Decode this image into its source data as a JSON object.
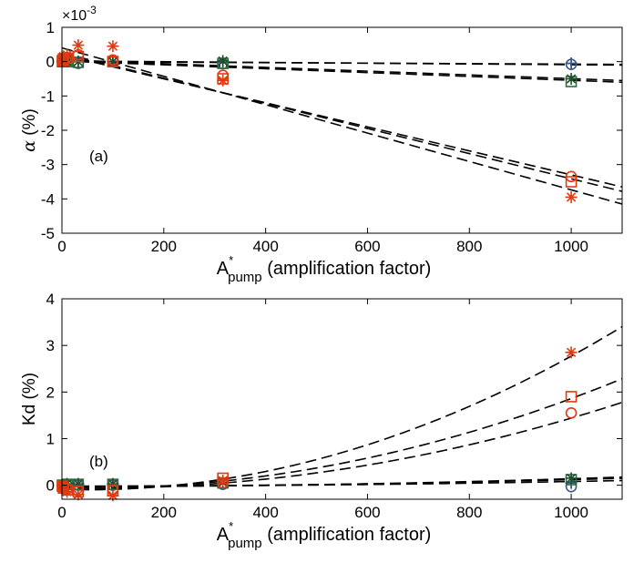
{
  "chart_data": [
    {
      "type": "scatter",
      "panel_label": "(a)",
      "xlabel_base": "A",
      "xlabel_sup": "*",
      "xlabel_sub": "pump",
      "xlabel_rest": " (amplification factor)",
      "ylabel_greek": "α",
      "ylabel_rest": " (%)",
      "y_multiplier_base": "×10",
      "y_multiplier_exp": "-3",
      "xlim": [
        0,
        1100
      ],
      "ylim": [
        -5,
        1
      ],
      "xticks": [
        0,
        200,
        400,
        600,
        800,
        1000
      ],
      "yticks": [
        -5,
        -4,
        -3,
        -2,
        -1,
        0,
        1
      ],
      "marker_series": [
        {
          "marker": "circle",
          "color": "#3a5a8c",
          "x": [
            1,
            3,
            10,
            32,
            100,
            316,
            1000
          ],
          "y": [
            0,
            0.03,
            0.02,
            -0.05,
            0,
            -0.06,
            -0.08
          ]
        },
        {
          "marker": "plus",
          "color": "#3a5a8c",
          "x": [
            1,
            3,
            10,
            32,
            100,
            316,
            1000
          ],
          "y": [
            0,
            0.02,
            0.02,
            0,
            0,
            -0.03,
            -0.05
          ]
        },
        {
          "marker": "square",
          "color": "#2e6b3c",
          "x": [
            1,
            3,
            10,
            32,
            100,
            316,
            1000
          ],
          "y": [
            0,
            0.01,
            0,
            -0.02,
            0,
            -0.05,
            -0.58
          ]
        },
        {
          "marker": "star",
          "color": "#1e4f2a",
          "x": [
            1,
            3,
            10,
            32,
            100,
            316,
            1000
          ],
          "y": [
            0,
            0.02,
            0.01,
            0,
            0,
            0.02,
            -0.5
          ]
        },
        {
          "marker": "circle",
          "color": "#e03a10",
          "x": [
            1,
            3,
            10,
            32,
            100,
            316,
            1000
          ],
          "y": [
            0.05,
            0.1,
            0.12,
            0.2,
            0.05,
            -0.4,
            -3.35
          ]
        },
        {
          "marker": "square",
          "color": "#e03a10",
          "x": [
            1,
            3,
            10,
            32,
            100,
            316,
            1000
          ],
          "y": [
            0.03,
            0.08,
            0.1,
            0.15,
            0,
            -0.5,
            -3.5
          ]
        },
        {
          "marker": "star",
          "color": "#e03a10",
          "x": [
            1,
            3,
            10,
            32,
            100,
            316,
            1000
          ],
          "y": [
            0.05,
            0.15,
            0.2,
            0.48,
            0.45,
            -0.55,
            -3.95
          ]
        }
      ],
      "fit_lines": [
        {
          "x": [
            0,
            1100
          ],
          "y": [
            0.02,
            -0.1
          ]
        },
        {
          "x": [
            0,
            1100
          ],
          "y": [
            0,
            -0.08
          ]
        },
        {
          "x": [
            0,
            1100
          ],
          "y": [
            0.05,
            -0.55
          ]
        },
        {
          "x": [
            0,
            1100
          ],
          "y": [
            0.02,
            -0.6
          ]
        },
        {
          "x": [
            0,
            1100
          ],
          "y": [
            0.2,
            -3.65
          ]
        },
        {
          "x": [
            0,
            1100
          ],
          "y": [
            0.25,
            -3.78
          ]
        },
        {
          "x": [
            0,
            1100
          ],
          "y": [
            0.4,
            -4.15
          ]
        }
      ]
    },
    {
      "type": "scatter",
      "panel_label": "(b)",
      "xlabel_base": "A",
      "xlabel_sup": "*",
      "xlabel_sub": "pump",
      "xlabel_rest": " (amplification factor)",
      "ylabel": "Kd (%)",
      "xlim": [
        0,
        1100
      ],
      "ylim": [
        -0.3,
        4
      ],
      "xticks": [
        0,
        200,
        400,
        600,
        800,
        1000
      ],
      "yticks": [
        0,
        1,
        2,
        3,
        4
      ],
      "marker_series": [
        {
          "marker": "circle",
          "color": "#3a5a8c",
          "x": [
            1,
            3,
            10,
            32,
            100,
            316,
            1000
          ],
          "y": [
            0,
            0,
            0,
            0,
            0,
            0.02,
            -0.03
          ]
        },
        {
          "marker": "plus",
          "color": "#3a5a8c",
          "x": [
            1,
            3,
            10,
            32,
            100,
            316,
            1000
          ],
          "y": [
            0,
            0,
            0,
            0,
            0,
            0.03,
            0.05
          ]
        },
        {
          "marker": "square",
          "color": "#2e6b3c",
          "x": [
            1,
            3,
            10,
            32,
            100,
            316,
            1000
          ],
          "y": [
            0,
            0,
            0.02,
            0.02,
            0.02,
            0.05,
            0.12
          ]
        },
        {
          "marker": "star",
          "color": "#1e4f2a",
          "x": [
            1,
            3,
            10,
            32,
            100,
            316,
            1000
          ],
          "y": [
            0,
            0,
            0.03,
            0.03,
            0.03,
            0.06,
            0.15
          ]
        },
        {
          "marker": "circle",
          "color": "#e03a10",
          "x": [
            1,
            3,
            10,
            32,
            100,
            316,
            1000
          ],
          "y": [
            -0.02,
            -0.05,
            -0.08,
            -0.12,
            -0.1,
            0.05,
            1.55
          ]
        },
        {
          "marker": "square",
          "color": "#e03a10",
          "x": [
            1,
            3,
            10,
            32,
            100,
            316,
            1000
          ],
          "y": [
            -0.02,
            -0.06,
            -0.1,
            -0.14,
            -0.12,
            0.15,
            1.9
          ]
        },
        {
          "marker": "star",
          "color": "#e03a10",
          "x": [
            1,
            3,
            10,
            32,
            100,
            316,
            1000
          ],
          "y": [
            -0.02,
            -0.08,
            -0.14,
            -0.2,
            -0.22,
            0.1,
            2.85
          ]
        }
      ],
      "fit_curves": [
        {
          "a": -0.02,
          "b": 0,
          "c": 1e-07
        },
        {
          "a": -0.02,
          "b": 0,
          "c": 1.4e-07
        },
        {
          "a": -0.03,
          "b": 0,
          "c": 1.7e-07
        },
        {
          "a": -0.06,
          "b": -0.0002,
          "c": 1.7e-06
        },
        {
          "a": -0.06,
          "b": -0.0002,
          "c": 2.12e-06
        },
        {
          "a": -0.09,
          "b": -0.0003,
          "c": 3.16e-06
        }
      ]
    }
  ]
}
